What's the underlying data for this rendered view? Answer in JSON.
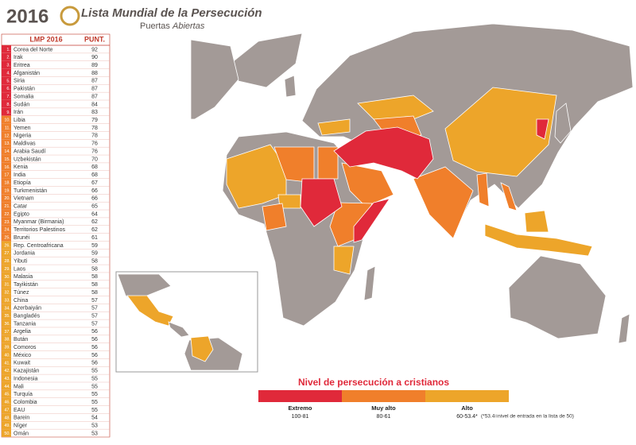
{
  "header": {
    "year": "2016",
    "title": "Lista Mundial de la Persecución",
    "subtitle": "Puertas",
    "subtitle_italic": "Abiertas"
  },
  "table": {
    "columns": [
      "LMP 2016",
      "PUNT."
    ],
    "rows": [
      [
        "1.",
        "Corea del Norte",
        "92",
        "#e0293a"
      ],
      [
        "2.",
        "Irak",
        "90",
        "#e0293a"
      ],
      [
        "3.",
        "Eritrea",
        "89",
        "#e0293a"
      ],
      [
        "4.",
        "Afganistán",
        "88",
        "#e0293a"
      ],
      [
        "5.",
        "Siria",
        "87",
        "#e0293a"
      ],
      [
        "6.",
        "Pakistán",
        "87",
        "#e0293a"
      ],
      [
        "7.",
        "Somalia",
        "87",
        "#e0293a"
      ],
      [
        "8.",
        "Sudán",
        "84",
        "#e0293a"
      ],
      [
        "9.",
        "Irán",
        "83",
        "#e0293a"
      ],
      [
        "10.",
        "Libia",
        "79",
        "#f07f2b"
      ],
      [
        "11.",
        "Yemen",
        "78",
        "#f07f2b"
      ],
      [
        "12.",
        "Nigeria",
        "78",
        "#f07f2b"
      ],
      [
        "13.",
        "Maldivas",
        "76",
        "#f07f2b"
      ],
      [
        "14.",
        "Arabia Saudí",
        "76",
        "#f07f2b"
      ],
      [
        "15.",
        "Uzbekistán",
        "70",
        "#f07f2b"
      ],
      [
        "16.",
        "Kenia",
        "68",
        "#f07f2b"
      ],
      [
        "17.",
        "India",
        "68",
        "#f07f2b"
      ],
      [
        "18.",
        "Etiopía",
        "67",
        "#f07f2b"
      ],
      [
        "19.",
        "Turkmenistán",
        "66",
        "#f07f2b"
      ],
      [
        "20.",
        "Vietnam",
        "66",
        "#f07f2b"
      ],
      [
        "21.",
        "Catar",
        "65",
        "#f07f2b"
      ],
      [
        "22.",
        "Egipto",
        "64",
        "#f07f2b"
      ],
      [
        "23.",
        "Myanmar (Birmania)",
        "62",
        "#f07f2b"
      ],
      [
        "24.",
        "Territorios Palestinos",
        "62",
        "#f07f2b"
      ],
      [
        "25.",
        "Brunéi",
        "61",
        "#f07f2b"
      ],
      [
        "26.",
        "Rep. Centroafricana",
        "59",
        "#eda52a"
      ],
      [
        "27.",
        "Jordania",
        "59",
        "#eda52a"
      ],
      [
        "28.",
        "Yibuti",
        "58",
        "#eda52a"
      ],
      [
        "29.",
        "Laos",
        "58",
        "#eda52a"
      ],
      [
        "30.",
        "Malasia",
        "58",
        "#eda52a"
      ],
      [
        "31.",
        "Tayikistán",
        "58",
        "#eda52a"
      ],
      [
        "32.",
        "Túnez",
        "58",
        "#eda52a"
      ],
      [
        "33.",
        "China",
        "57",
        "#eda52a"
      ],
      [
        "34.",
        "Azerbaiyán",
        "57",
        "#eda52a"
      ],
      [
        "35.",
        "Bangladés",
        "57",
        "#eda52a"
      ],
      [
        "36.",
        "Tanzania",
        "57",
        "#eda52a"
      ],
      [
        "37.",
        "Argelia",
        "56",
        "#eda52a"
      ],
      [
        "38.",
        "Bután",
        "56",
        "#eda52a"
      ],
      [
        "39.",
        "Comoros",
        "56",
        "#eda52a"
      ],
      [
        "40.",
        "México",
        "56",
        "#eda52a"
      ],
      [
        "41.",
        "Kuwait",
        "56",
        "#eda52a"
      ],
      [
        "42.",
        "Kazajistán",
        "55",
        "#eda52a"
      ],
      [
        "43.",
        "Indonesia",
        "55",
        "#eda52a"
      ],
      [
        "44.",
        "Mali",
        "55",
        "#eda52a"
      ],
      [
        "45.",
        "Turquía",
        "55",
        "#eda52a"
      ],
      [
        "46.",
        "Colombia",
        "55",
        "#eda52a"
      ],
      [
        "47.",
        "EAU",
        "55",
        "#eda52a"
      ],
      [
        "48.",
        "Barein",
        "54",
        "#eda52a"
      ],
      [
        "49.",
        "Níger",
        "53",
        "#eda52a"
      ],
      [
        "50.",
        "Omán",
        "53",
        "#eda52a"
      ]
    ]
  },
  "legend": {
    "title": "Nivel de persecución a cristianos",
    "items": [
      {
        "label": "Extremo",
        "range": "100-81",
        "color": "#e0293a"
      },
      {
        "label": "Muy alto",
        "range": "80-61",
        "color": "#f07f2b"
      },
      {
        "label": "Alto",
        "range": "60-53.4*",
        "color": "#eda52a"
      }
    ],
    "note": "(*53.4=nivel de entrada en la lista de 50)"
  }
}
